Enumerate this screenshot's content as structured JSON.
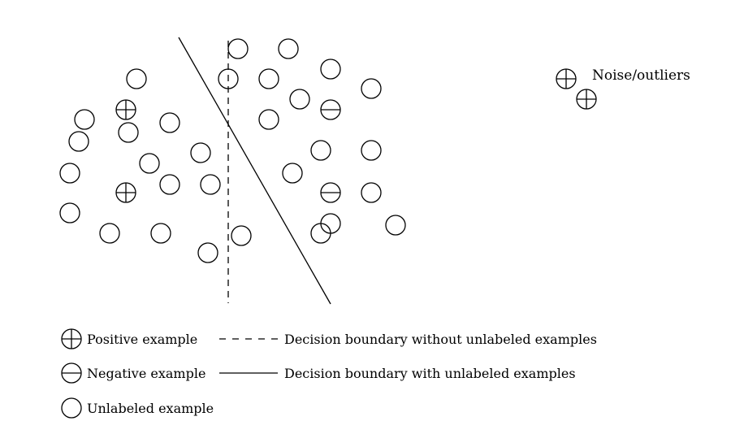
{
  "noise_label": "Noise/outliers",
  "legend": {
    "positive": "Positive example",
    "negative": "Negative example",
    "unlabeled": "Unlabeled example",
    "boundary_without": "Decision boundary without unlabeled examples",
    "boundary_with": "Decision boundary with unlabeled examples"
  }
}
